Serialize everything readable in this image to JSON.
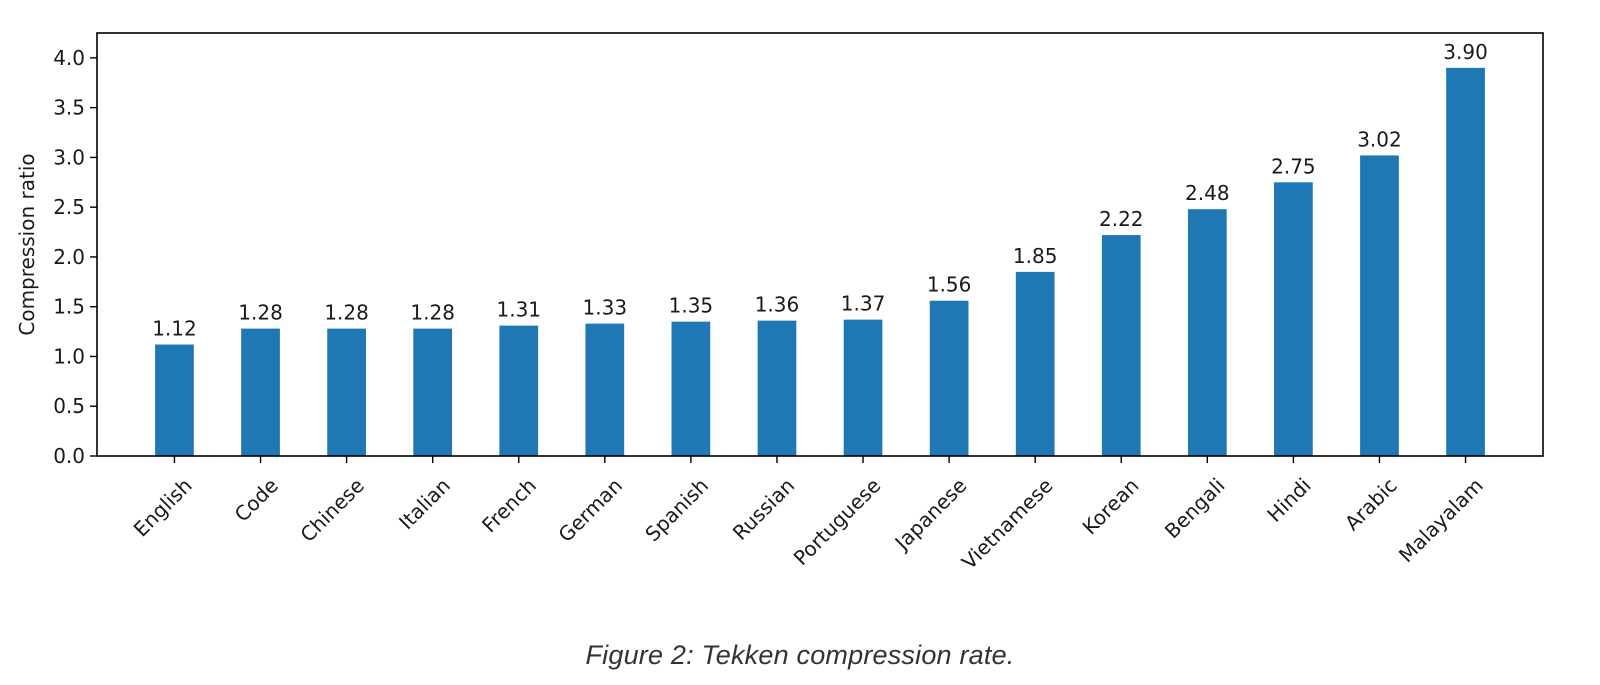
{
  "chart_data": {
    "type": "bar",
    "categories": [
      "English",
      "Code",
      "Chinese",
      "Italian",
      "French",
      "German",
      "Spanish",
      "Russian",
      "Portuguese",
      "Japanese",
      "Vietnamese",
      "Korean",
      "Bengali",
      "Hindi",
      "Arabic",
      "Malayalam"
    ],
    "values": [
      1.12,
      1.28,
      1.28,
      1.28,
      1.31,
      1.33,
      1.35,
      1.36,
      1.37,
      1.56,
      1.85,
      2.22,
      2.48,
      2.75,
      3.02,
      3.9
    ],
    "data_labels": [
      "1.12",
      "1.28",
      "1.28",
      "1.28",
      "1.31",
      "1.33",
      "1.35",
      "1.36",
      "1.37",
      "1.56",
      "1.85",
      "2.22",
      "2.48",
      "2.75",
      "3.02",
      "3.90"
    ],
    "ylabel": "Compression ratio",
    "xlabel": "",
    "ylim": [
      0,
      4.25
    ],
    "yticks": [
      "0.0",
      "0.5",
      "1.0",
      "1.5",
      "2.0",
      "2.5",
      "3.0",
      "3.5",
      "4.0"
    ],
    "grid": false,
    "bar_color": "#1f77b4",
    "x_tick_rotation_deg": 45
  },
  "caption": "Figure 2: Tekken compression rate."
}
